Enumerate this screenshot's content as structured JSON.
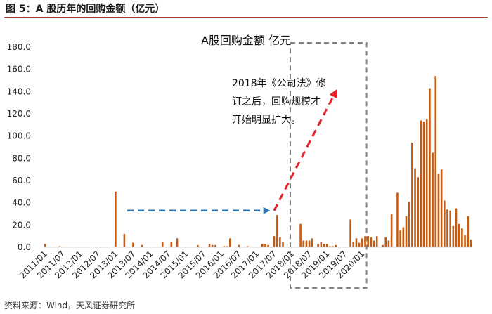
{
  "figure": {
    "title": "图 5：A 股历年的回购金额（亿元）",
    "source": "资料来源：Wind，天风证券研究所"
  },
  "colors": {
    "bar": "#c55a11",
    "arrow_blue": "#2e75b6",
    "arrow_red": "#e8202a",
    "box": "#808080",
    "rule": "#b33a2a"
  },
  "chart_data": {
    "type": "bar",
    "title": "A股回购金额 亿元",
    "xlabel": "",
    "ylabel": "",
    "ylim": [
      0,
      180
    ],
    "yticks": [
      0,
      20,
      40,
      60,
      80,
      100,
      120,
      140,
      160,
      180
    ],
    "ytick_labels": [
      "0.0",
      "20.0",
      "40.0",
      "60.0",
      "80.0",
      "100.0",
      "120.0",
      "140.0",
      "160.0",
      "180.0"
    ],
    "xtick_labels": [
      "2011/01",
      "2011/07",
      "2012/01",
      "2012/07",
      "2013/01",
      "2013/07",
      "2014/01",
      "2014/07",
      "2015/01",
      "2015/07",
      "2016/01",
      "2016/07",
      "2017/01",
      "2017/07",
      "2018/01",
      "2018/07",
      "2019/01",
      "2019/07",
      "2020/01"
    ],
    "x_start": "2011/01",
    "x_end": "2020/03",
    "values": [
      3,
      0,
      0,
      0,
      0,
      1,
      0,
      0,
      0,
      0,
      0,
      0,
      0,
      0,
      0,
      0,
      0,
      0,
      0,
      0,
      0,
      0,
      0,
      0,
      50,
      0,
      0,
      12,
      0,
      0,
      4,
      0,
      0,
      2,
      0,
      0,
      0,
      0,
      0,
      0,
      5,
      0,
      0,
      5,
      0,
      8,
      0,
      0,
      0,
      0,
      0,
      0,
      2,
      0,
      0,
      0,
      3,
      2,
      2,
      0,
      0,
      1,
      1,
      8,
      0,
      0,
      2,
      0,
      0,
      1,
      0,
      0,
      0,
      0,
      3,
      3,
      2,
      0,
      10,
      29,
      9,
      5,
      0,
      0,
      0,
      0,
      0,
      21,
      6,
      6,
      6,
      8,
      0,
      3,
      5,
      3,
      3,
      1,
      1,
      2,
      0,
      0,
      0,
      0,
      25,
      5,
      8,
      4,
      8,
      10,
      10,
      9,
      6,
      10,
      0,
      2,
      9,
      6,
      30,
      0,
      49,
      15,
      18,
      28,
      41,
      94,
      71,
      63,
      114,
      113,
      115,
      143,
      85,
      154,
      66,
      70,
      42,
      34,
      33,
      19,
      35,
      21,
      17,
      11,
      28,
      7
    ],
    "annotations": [
      {
        "text_lines": [
          "2018年《公司法》修",
          "订之后，回购规模才",
          "开始明显扩大。"
        ]
      }
    ],
    "arrows": [
      {
        "name": "flat-trend",
        "style": "dashed",
        "color": "blue",
        "from": [
          "2013/05",
          33
        ],
        "to": [
          "2017/05",
          33
        ]
      },
      {
        "name": "rising-trend",
        "style": "dashed",
        "color": "red",
        "from": [
          "2017/07",
          33
        ],
        "to": [
          "2019/04",
          140
        ]
      }
    ],
    "highlight_box": {
      "from": "2018/01",
      "to": "2020/02"
    }
  }
}
